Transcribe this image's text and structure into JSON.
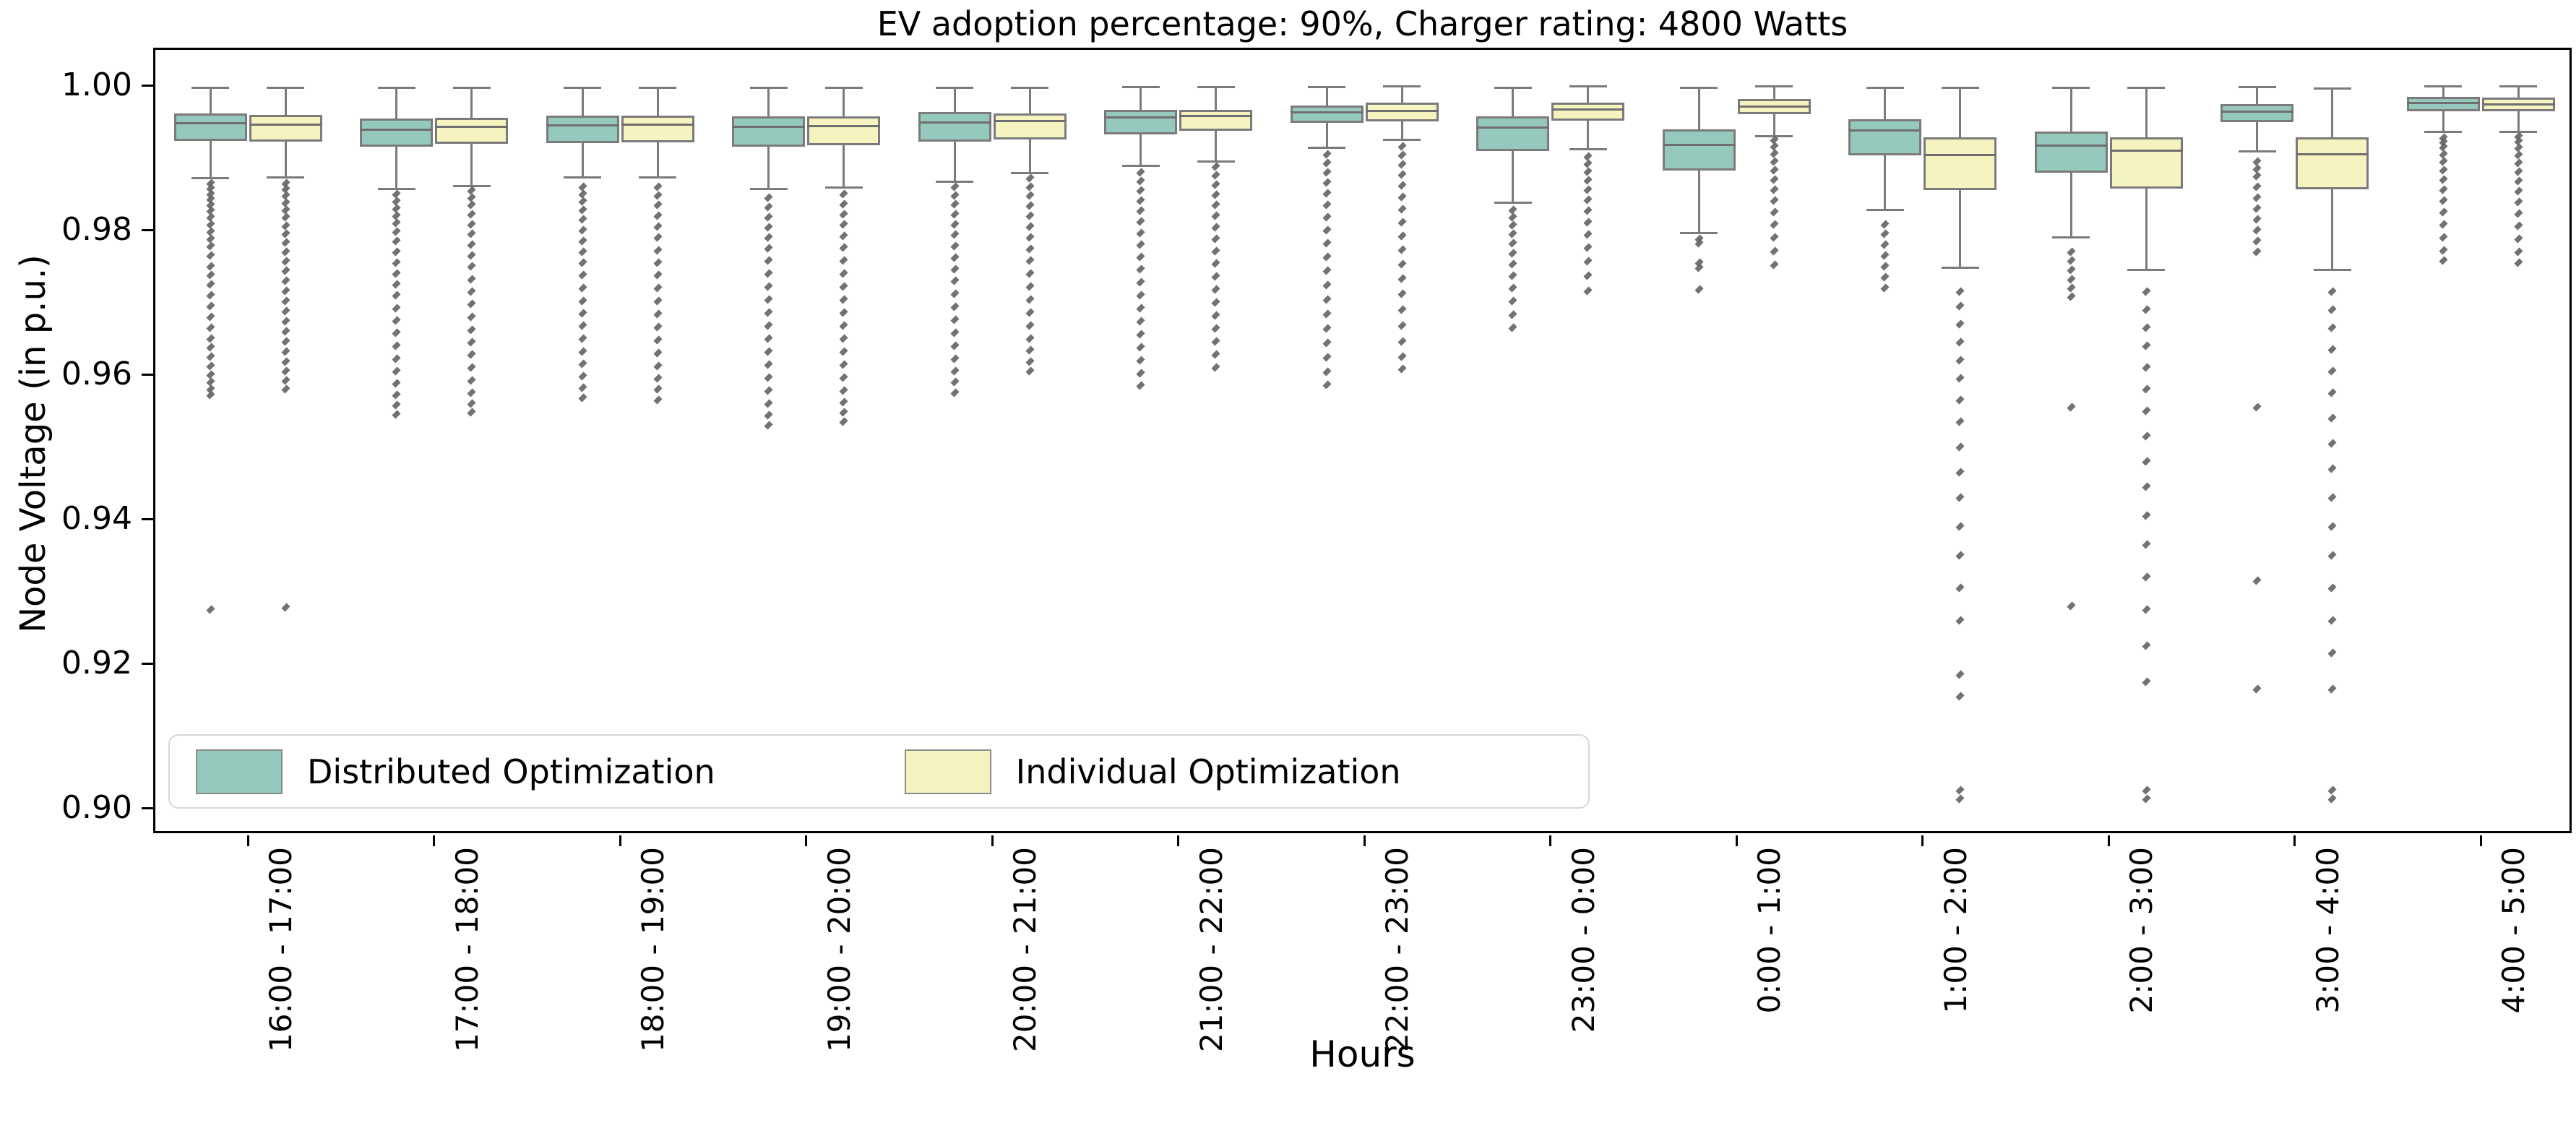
{
  "title": "EV adoption percentage: 90%, Charger rating: 4800 Watts",
  "axes": {
    "y_label": "Node Voltage (in p.u.)",
    "x_label": "Hours",
    "y_tick_labels": [
      "1.00",
      "0.98",
      "0.96",
      "0.94",
      "0.92",
      "0.90"
    ],
    "y_tick_values": [
      1.0,
      0.98,
      0.96,
      0.94,
      0.92,
      0.9
    ],
    "grid": "off",
    "legend_position": "lower left"
  },
  "colors": {
    "distributed_fill": "#96c9bd",
    "individual_fill": "#f5f4c1",
    "box_edge": "#7b7b7b",
    "whisker": "#7b7b7b",
    "flier": "#636363",
    "spine": "#000000",
    "legend_border": "#d7d7d7"
  },
  "legend": {
    "items": [
      {
        "label": "Distributed Optimization",
        "color": "#96c9bd"
      },
      {
        "label": "Individual Optimization",
        "color": "#f5f4c1"
      }
    ]
  },
  "chart_data": {
    "type": "box",
    "title": "EV adoption percentage: 90%, Charger rating: 4800 Watts",
    "xlabel": "Hours",
    "ylabel": "Node Voltage (in p.u.)",
    "ylim": [
      0.8962,
      1.0049
    ],
    "categories": [
      "16:00 - 17:00",
      "17:00 - 18:00",
      "18:00 - 19:00",
      "19:00 - 20:00",
      "20:00 - 21:00",
      "21:00 - 22:00",
      "22:00 - 23:00",
      "23:00 - 0:00",
      "0:00 - 1:00",
      "1:00 - 2:00",
      "2:00 - 3:00",
      "3:00 - 4:00",
      "4:00 - 5:00"
    ],
    "series": [
      {
        "name": "Distributed Optimization",
        "color": "#96c9bd",
        "boxes": [
          {
            "whislo": 0.9872,
            "q1": 0.9923,
            "med": 0.9948,
            "q3": 0.9961,
            "whishi": 0.9997,
            "outliers": [
              0.9865,
              0.9858,
              0.985,
              0.9843,
              0.9835,
              0.9827,
              0.9818,
              0.9808,
              0.9798,
              0.9788,
              0.9778,
              0.9765,
              0.975,
              0.9738,
              0.9725,
              0.971,
              0.9695,
              0.968,
              0.9665,
              0.965,
              0.9638,
              0.9625,
              0.9612,
              0.96,
              0.959,
              0.958,
              0.9572,
              0.9275
            ]
          },
          {
            "whislo": 0.9857,
            "q1": 0.9915,
            "med": 0.9939,
            "q3": 0.9954,
            "whishi": 0.9997,
            "outliers": [
              0.985,
              0.984,
              0.983,
              0.982,
              0.981,
              0.9798,
              0.9785,
              0.977,
              0.9755,
              0.974,
              0.9725,
              0.971,
              0.9692,
              0.9675,
              0.9658,
              0.964,
              0.9622,
              0.9605,
              0.9588,
              0.9572,
              0.9558,
              0.9545
            ]
          },
          {
            "whislo": 0.9873,
            "q1": 0.992,
            "med": 0.9945,
            "q3": 0.9958,
            "whishi": 0.9997,
            "outliers": [
              0.986,
              0.985,
              0.984,
              0.9828,
              0.9815,
              0.98,
              0.9785,
              0.977,
              0.9755,
              0.9738,
              0.972,
              0.9702,
              0.9685,
              0.9668,
              0.965,
              0.9632,
              0.9615,
              0.9598,
              0.9582,
              0.9568
            ]
          },
          {
            "whislo": 0.9857,
            "q1": 0.9915,
            "med": 0.9943,
            "q3": 0.9957,
            "whishi": 0.9997,
            "outliers": [
              0.9845,
              0.9832,
              0.9818,
              0.9804,
              0.979,
              0.9775,
              0.9758,
              0.974,
              0.9722,
              0.9704,
              0.9686,
              0.9668,
              0.965,
              0.9632,
              0.9614,
              0.9596,
              0.9578,
              0.956,
              0.9544,
              0.953
            ]
          },
          {
            "whislo": 0.9867,
            "q1": 0.9922,
            "med": 0.9949,
            "q3": 0.9963,
            "whishi": 0.9997,
            "outliers": [
              0.986,
              0.9848,
              0.9836,
              0.9822,
              0.9808,
              0.9794,
              0.9778,
              0.9762,
              0.9746,
              0.973,
              0.9712,
              0.9694,
              0.9676,
              0.9658,
              0.964,
              0.9622,
              0.9605,
              0.959,
              0.9575
            ]
          },
          {
            "whislo": 0.9889,
            "q1": 0.9932,
            "med": 0.9956,
            "q3": 0.9966,
            "whishi": 0.9998,
            "outliers": [
              0.988,
              0.9868,
              0.9855,
              0.9841,
              0.9827,
              0.9812,
              0.9796,
              0.978,
              0.9763,
              0.9746,
              0.9728,
              0.971,
              0.9692,
              0.9674,
              0.9656,
              0.9638,
              0.962,
              0.9602,
              0.9585
            ]
          },
          {
            "whislo": 0.9914,
            "q1": 0.9948,
            "med": 0.9963,
            "q3": 0.9972,
            "whishi": 0.9998,
            "outliers": [
              0.9905,
              0.9893,
              0.988,
              0.9866,
              0.9851,
              0.9835,
              0.9818,
              0.98,
              0.9782,
              0.9763,
              0.9744,
              0.9724,
              0.9704,
              0.9684,
              0.9664,
              0.9644,
              0.9624,
              0.9604,
              0.9586
            ]
          },
          {
            "whislo": 0.9838,
            "q1": 0.9909,
            "med": 0.9942,
            "q3": 0.9957,
            "whishi": 0.9997,
            "outliers": [
              0.9828,
              0.9818,
              0.9807,
              0.9795,
              0.9782,
              0.9768,
              0.9753,
              0.9737,
              0.972,
              0.9702,
              0.9683,
              0.9665
            ]
          },
          {
            "whislo": 0.9796,
            "q1": 0.9882,
            "med": 0.9918,
            "q3": 0.9939,
            "whishi": 0.9997,
            "outliers": [
              0.9788,
              0.9782,
              0.9755,
              0.9748,
              0.9718
            ]
          },
          {
            "whislo": 0.9828,
            "q1": 0.9903,
            "med": 0.9938,
            "q3": 0.9953,
            "whishi": 0.9997,
            "outliers": [
              0.9808,
              0.9795,
              0.978,
              0.9765,
              0.975,
              0.9735,
              0.972
            ]
          },
          {
            "whislo": 0.979,
            "q1": 0.9879,
            "med": 0.9917,
            "q3": 0.9936,
            "whishi": 0.9997,
            "outliers": [
              0.977,
              0.9758,
              0.9745,
              0.9732,
              0.972,
              0.9708,
              0.9555,
              0.928
            ]
          },
          {
            "whislo": 0.9909,
            "q1": 0.9949,
            "med": 0.9964,
            "q3": 0.9974,
            "whishi": 0.9998,
            "outliers": [
              0.9895,
              0.9885,
              0.9875,
              0.986,
              0.9845,
              0.983,
              0.9815,
              0.98,
              0.9785,
              0.977,
              0.9555,
              0.9315,
              0.9165
            ]
          },
          {
            "whislo": 0.9936,
            "q1": 0.9964,
            "med": 0.9976,
            "q3": 0.9984,
            "whishi": 0.9999,
            "outliers": [
              0.9928,
              0.9922,
              0.9915,
              0.9905,
              0.9895,
              0.9883,
              0.987,
              0.9856,
              0.9841,
              0.9825,
              0.9808,
              0.979,
              0.9772,
              0.9758
            ]
          }
        ]
      },
      {
        "name": "Individual Optimization",
        "color": "#f5f4c1",
        "boxes": [
          {
            "whislo": 0.9873,
            "q1": 0.9922,
            "med": 0.9946,
            "q3": 0.9959,
            "whishi": 0.9997,
            "outliers": [
              0.9865,
              0.9857,
              0.9848,
              0.9838,
              0.9828,
              0.9818,
              0.9806,
              0.9795,
              0.9783,
              0.977,
              0.9757,
              0.9744,
              0.973,
              0.9716,
              0.9702,
              0.9688,
              0.9674,
              0.966,
              0.9646,
              0.9632,
              0.9618,
              0.9605,
              0.9592,
              0.958,
              0.9278
            ]
          },
          {
            "whislo": 0.9861,
            "q1": 0.9919,
            "med": 0.9943,
            "q3": 0.9955,
            "whishi": 0.9997,
            "outliers": [
              0.9855,
              0.9845,
              0.9835,
              0.9822,
              0.9808,
              0.9795,
              0.978,
              0.9765,
              0.975,
              0.9732,
              0.9715,
              0.9698,
              0.968,
              0.9662,
              0.9645,
              0.9628,
              0.961,
              0.9592,
              0.9575,
              0.956,
              0.9548
            ]
          },
          {
            "whislo": 0.9873,
            "q1": 0.9921,
            "med": 0.9946,
            "q3": 0.9958,
            "whishi": 0.9997,
            "outliers": [
              0.986,
              0.9848,
              0.9835,
              0.982,
              0.9805,
              0.979,
              0.9772,
              0.9755,
              0.9738,
              0.972,
              0.9702,
              0.9684,
              0.9666,
              0.9648,
              0.963,
              0.9612,
              0.9595,
              0.958,
              0.9565
            ]
          },
          {
            "whislo": 0.9859,
            "q1": 0.9917,
            "med": 0.9944,
            "q3": 0.9957,
            "whishi": 0.9997,
            "outliers": [
              0.985,
              0.9836,
              0.9822,
              0.9808,
              0.9792,
              0.9776,
              0.9758,
              0.974,
              0.9722,
              0.9704,
              0.9686,
              0.9668,
              0.965,
              0.9632,
              0.9614,
              0.9596,
              0.9578,
              0.9562,
              0.9548,
              0.9535
            ]
          },
          {
            "whislo": 0.9879,
            "q1": 0.9925,
            "med": 0.9951,
            "q3": 0.9961,
            "whishi": 0.9997,
            "outliers": [
              0.9872,
              0.986,
              0.9848,
              0.9834,
              0.982,
              0.9805,
              0.979,
              0.9774,
              0.9758,
              0.974,
              0.9722,
              0.9704,
              0.9686,
              0.9668,
              0.965,
              0.9634,
              0.9618,
              0.9605
            ]
          },
          {
            "whislo": 0.9895,
            "q1": 0.9937,
            "med": 0.9958,
            "q3": 0.9966,
            "whishi": 0.9998,
            "outliers": [
              0.9888,
              0.9876,
              0.9863,
              0.9849,
              0.9835,
              0.982,
              0.9804,
              0.9788,
              0.9771,
              0.9754,
              0.9736,
              0.9718,
              0.97,
              0.9682,
              0.9664,
              0.9646,
              0.9628,
              0.961
            ]
          },
          {
            "whislo": 0.9925,
            "q1": 0.995,
            "med": 0.9965,
            "q3": 0.9976,
            "whishi": 0.9999,
            "outliers": [
              0.9916,
              0.9904,
              0.9891,
              0.9877,
              0.9862,
              0.9846,
              0.9829,
              0.9811,
              0.9792,
              0.9773,
              0.9753,
              0.9733,
              0.9712,
              0.969,
              0.9668,
              0.9646,
              0.9625,
              0.9608
            ]
          },
          {
            "whislo": 0.9912,
            "q1": 0.9951,
            "med": 0.9967,
            "q3": 0.9976,
            "whishi": 0.9999,
            "outliers": [
              0.9902,
              0.9892,
              0.9881,
              0.9869,
              0.9856,
              0.9842,
              0.9827,
              0.9811,
              0.9794,
              0.9776,
              0.9757,
              0.9737,
              0.9716
            ]
          },
          {
            "whislo": 0.993,
            "q1": 0.996,
            "med": 0.9971,
            "q3": 0.9981,
            "whishi": 0.9999,
            "outliers": [
              0.9925,
              0.9916,
              0.9906,
              0.9895,
              0.9883,
              0.987,
              0.9856,
              0.9841,
              0.9825,
              0.9808,
              0.979,
              0.9771,
              0.9752
            ]
          },
          {
            "whislo": 0.9748,
            "q1": 0.9855,
            "med": 0.9904,
            "q3": 0.9928,
            "whishi": 0.9997,
            "outliers": [
              0.9715,
              0.9695,
              0.967,
              0.9645,
              0.962,
              0.9595,
              0.9565,
              0.9535,
              0.95,
              0.9465,
              0.943,
              0.939,
              0.935,
              0.9305,
              0.926,
              0.9185,
              0.9155,
              0.9025,
              0.9013
            ]
          },
          {
            "whislo": 0.9745,
            "q1": 0.9857,
            "med": 0.991,
            "q3": 0.9928,
            "whishi": 0.9997,
            "outliers": [
              0.9715,
              0.969,
              0.9665,
              0.964,
              0.961,
              0.958,
              0.955,
              0.9515,
              0.948,
              0.9445,
              0.9405,
              0.9365,
              0.932,
              0.9275,
              0.9225,
              0.9175,
              0.9025,
              0.9013
            ]
          },
          {
            "whislo": 0.9745,
            "q1": 0.9856,
            "med": 0.9905,
            "q3": 0.9928,
            "whishi": 0.9996,
            "outliers": [
              0.9715,
              0.969,
              0.9665,
              0.9635,
              0.9605,
              0.9575,
              0.954,
              0.9505,
              0.947,
              0.943,
              0.939,
              0.935,
              0.9305,
              0.926,
              0.9215,
              0.9165,
              0.9025,
              0.9013
            ]
          },
          {
            "whislo": 0.9936,
            "q1": 0.9964,
            "med": 0.9974,
            "q3": 0.9983,
            "whishi": 0.9999,
            "outliers": [
              0.993,
              0.9923,
              0.9914,
              0.9904,
              0.9893,
              0.9881,
              0.9868,
              0.9854,
              0.9839,
              0.9823,
              0.9806,
              0.9788,
              0.977,
              0.9755
            ]
          }
        ]
      }
    ]
  }
}
